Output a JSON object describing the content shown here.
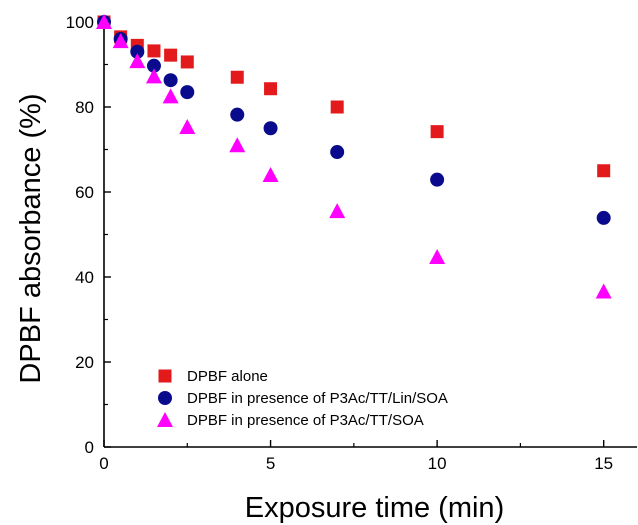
{
  "chart_data": {
    "type": "scatter",
    "xlabel": "Exposure time (min)",
    "ylabel": "DPBF absorbance (%)",
    "xlim": [
      0,
      16
    ],
    "ylim": [
      0,
      100
    ],
    "xticks": [
      0,
      5,
      10,
      15
    ],
    "yticks": [
      0,
      20,
      40,
      60,
      80,
      100
    ],
    "legend_position": "bottom-left",
    "series": [
      {
        "name": "DPBF alone",
        "marker": "square",
        "color": "#e31a1c",
        "x": [
          0,
          0.5,
          1,
          1.5,
          2,
          2.5,
          4,
          5,
          7,
          10,
          15
        ],
        "y": [
          100,
          96.5,
          94.5,
          93.2,
          92.2,
          90.6,
          87,
          84.3,
          80,
          74.2,
          65
        ]
      },
      {
        "name": "DPBF in presence of P3Ac/TT/Lin/SOA",
        "marker": "circle",
        "color": "#0a0a8c",
        "x": [
          0,
          0.5,
          1,
          1.5,
          2,
          2.5,
          4,
          5,
          7,
          10,
          15
        ],
        "y": [
          100,
          96,
          93,
          89.7,
          86.3,
          83.5,
          78.2,
          75,
          69.4,
          62.9,
          53.9
        ]
      },
      {
        "name": "DPBF in presence of P3Ac/TT/SOA",
        "marker": "triangle",
        "color": "#ff00ff",
        "x": [
          0,
          0.5,
          1,
          1.5,
          2,
          2.5,
          4,
          5,
          7,
          10,
          15
        ],
        "y": [
          100,
          95.5,
          90.8,
          87.2,
          82.5,
          75.3,
          71,
          64,
          55.5,
          44.7,
          36.6
        ]
      }
    ]
  }
}
